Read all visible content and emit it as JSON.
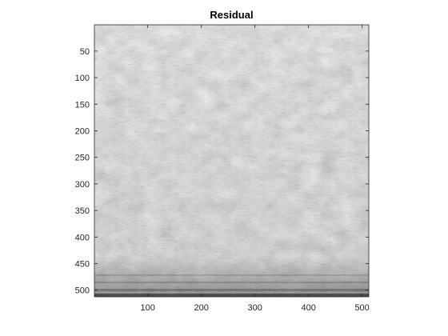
{
  "chart_data": {
    "type": "heatmap",
    "title": "Residual",
    "xlabel": "",
    "ylabel": "",
    "colormap": "gray",
    "image_size": [
      512,
      512
    ],
    "xlim": [
      1,
      512
    ],
    "ylim": [
      1,
      512
    ],
    "y_axis_direction": "reverse",
    "xticks": [
      100,
      200,
      300,
      400,
      500
    ],
    "yticks": [
      50,
      100,
      150,
      200,
      250,
      300,
      350,
      400,
      450,
      500
    ],
    "description_values": {
      "mean_intensity": "mid-gray",
      "bottom_rows": "darker horizontal banding"
    }
  },
  "colors": {
    "axis": "#262626",
    "base_gray": "#b4b4b4",
    "dark_band": "#6e6e6e"
  }
}
